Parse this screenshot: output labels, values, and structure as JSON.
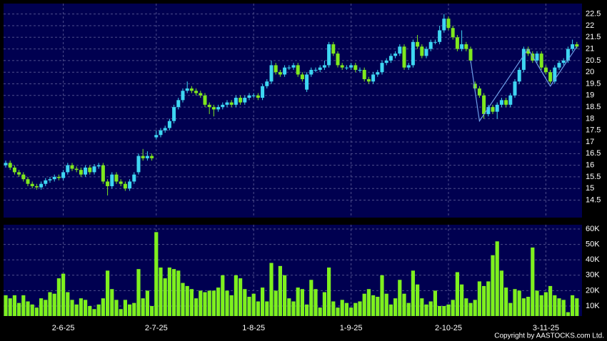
{
  "chart_data": {
    "type": "candlestick",
    "categories": [
      null,
      null,
      null,
      null,
      null,
      null,
      null,
      null,
      null,
      null,
      null,
      null,
      null,
      "2-6-25",
      null,
      null,
      null,
      null,
      null,
      null,
      null,
      null,
      null,
      null,
      null,
      null,
      null,
      null,
      null,
      null,
      null,
      null,
      null,
      null,
      "2-7-25",
      null,
      null,
      null,
      null,
      null,
      null,
      null,
      null,
      null,
      null,
      null,
      null,
      null,
      null,
      null,
      null,
      null,
      null,
      null,
      null,
      null,
      "1-8-25",
      null,
      null,
      null,
      null,
      null,
      null,
      null,
      null,
      null,
      null,
      null,
      null,
      null,
      null,
      null,
      null,
      null,
      null,
      null,
      null,
      null,
      "1-9-25",
      null,
      null,
      null,
      null,
      null,
      null,
      null,
      null,
      null,
      null,
      null,
      null,
      null,
      null,
      null,
      null,
      null,
      null,
      null,
      null,
      null,
      "2-10-25",
      null,
      null,
      null,
      null,
      null,
      null,
      null,
      null,
      null,
      null,
      null,
      null,
      null,
      null,
      null,
      null,
      null,
      null,
      null,
      null,
      null,
      "3-11-25",
      null,
      null,
      null,
      null,
      null,
      null,
      null
    ],
    "open": [
      16.0,
      16.1,
      15.9,
      15.7,
      15.6,
      15.4,
      15.2,
      15.1,
      15.05,
      15.2,
      15.35,
      15.4,
      15.5,
      15.45,
      15.7,
      16.0,
      15.85,
      15.8,
      15.6,
      15.9,
      15.7,
      15.95,
      16.0,
      15.3,
      15.1,
      15.6,
      15.3,
      15.2,
      15.0,
      15.3,
      15.7,
      16.4,
      16.3,
      16.4,
      17.2,
      17.3,
      17.5,
      17.6,
      17.9,
      18.5,
      18.8,
      19.2,
      19.3,
      19.2,
      19.1,
      19.0,
      18.6,
      18.5,
      18.4,
      18.5,
      18.6,
      18.7,
      18.6,
      18.9,
      18.7,
      18.9,
      19.0,
      19.0,
      18.9,
      19.4,
      19.6,
      20.3,
      20.0,
      19.9,
      20.2,
      20.2,
      20.3,
      19.9,
      19.25,
      19.9,
      20.1,
      20.1,
      20.2,
      20.3,
      21.2,
      20.8,
      20.3,
      20.2,
      20.2,
      20.3,
      20.1,
      20.1,
      19.7,
      19.6,
      19.9,
      20.0,
      20.4,
      20.5,
      20.7,
      20.8,
      21.1,
      20.2,
      20.3,
      21.3,
      21.1,
      20.7,
      21.0,
      21.3,
      21.3,
      21.8,
      22.3,
      21.9,
      21.5,
      21.0,
      21.2,
      21.0,
      19.5,
      19.3,
      19.0,
      18.2,
      18.5,
      18.3,
      18.6,
      18.8,
      18.6,
      19.0,
      19.6,
      20.1,
      21.0,
      20.8,
      20.5,
      20.8,
      20.2,
      20.0,
      19.6,
      20.2,
      20.4,
      20.5,
      21.0,
      21.2
    ],
    "high": [
      16.2,
      16.2,
      16.0,
      15.8,
      15.7,
      15.5,
      15.3,
      15.2,
      15.3,
      15.45,
      15.5,
      15.6,
      15.6,
      15.8,
      16.1,
      16.1,
      15.95,
      15.9,
      16.0,
      16.0,
      16.05,
      16.1,
      16.1,
      15.4,
      15.7,
      15.7,
      15.4,
      15.3,
      15.4,
      15.7,
      16.5,
      16.7,
      16.6,
      16.5,
      17.5,
      17.6,
      17.7,
      18.0,
      18.6,
      18.9,
      19.3,
      19.6,
      19.4,
      19.3,
      19.2,
      19.1,
      18.7,
      18.6,
      18.6,
      18.7,
      18.8,
      18.8,
      19.0,
      19.0,
      19.0,
      19.1,
      19.1,
      19.1,
      19.5,
      19.7,
      20.5,
      20.4,
      20.1,
      20.3,
      20.3,
      20.4,
      20.4,
      20.0,
      20.0,
      20.2,
      20.2,
      20.3,
      20.5,
      21.3,
      21.3,
      20.9,
      20.4,
      20.3,
      20.4,
      20.4,
      20.2,
      20.2,
      19.8,
      20.0,
      20.1,
      20.5,
      20.6,
      20.8,
      20.9,
      21.2,
      21.2,
      20.4,
      21.4,
      21.6,
      21.2,
      21.1,
      21.4,
      21.4,
      22.0,
      22.5,
      22.4,
      22.0,
      21.6,
      21.8,
      21.3,
      21.1,
      19.6,
      19.4,
      19.1,
      18.6,
      18.6,
      18.7,
      18.9,
      18.9,
      19.1,
      19.7,
      20.2,
      21.1,
      21.1,
      20.9,
      20.9,
      20.9,
      20.3,
      20.1,
      20.3,
      20.5,
      20.6,
      21.1,
      21.4,
      21.3
    ],
    "low": [
      15.9,
      15.8,
      15.6,
      15.5,
      15.3,
      15.1,
      15.0,
      14.95,
      14.95,
      15.1,
      15.25,
      15.3,
      15.35,
      15.35,
      15.6,
      15.75,
      15.7,
      15.5,
      15.5,
      15.6,
      15.6,
      15.85,
      15.2,
      14.7,
      15.0,
      15.2,
      15.1,
      14.9,
      14.9,
      15.2,
      15.6,
      16.2,
      16.2,
      16.2,
      17.1,
      17.2,
      17.4,
      17.5,
      17.8,
      18.4,
      18.7,
      19.1,
      19.1,
      19.0,
      18.9,
      18.5,
      18.2,
      18.1,
      18.3,
      18.4,
      18.5,
      18.5,
      18.5,
      18.6,
      18.6,
      18.8,
      18.9,
      18.8,
      18.8,
      19.3,
      19.5,
      19.9,
      19.8,
      19.8,
      20.1,
      20.1,
      19.8,
      19.6,
      19.15,
      19.8,
      20.0,
      20.0,
      20.1,
      20.2,
      20.7,
      20.2,
      20.1,
      20.1,
      20.1,
      20.0,
      20.0,
      19.6,
      19.5,
      19.5,
      19.8,
      19.9,
      20.3,
      20.4,
      20.6,
      20.7,
      20.1,
      20.1,
      20.2,
      21.0,
      20.6,
      20.6,
      20.9,
      21.2,
      21.2,
      21.7,
      21.8,
      21.4,
      20.9,
      20.9,
      20.9,
      20.4,
      19.2,
      18.9,
      18.0,
      18.1,
      18.2,
      18.0,
      18.5,
      18.5,
      18.5,
      18.9,
      19.5,
      20.0,
      20.7,
      20.4,
      20.4,
      20.1,
      19.9,
      19.5,
      19.5,
      20.1,
      20.3,
      20.4,
      20.9,
      21.0
    ],
    "close": [
      16.1,
      15.9,
      15.7,
      15.6,
      15.4,
      15.2,
      15.1,
      15.05,
      15.2,
      15.35,
      15.4,
      15.5,
      15.45,
      15.7,
      16.0,
      15.85,
      15.8,
      15.6,
      15.9,
      15.7,
      15.95,
      16.0,
      15.3,
      15.1,
      15.6,
      15.3,
      15.2,
      15.0,
      15.3,
      15.6,
      16.4,
      16.3,
      16.4,
      16.3,
      17.3,
      17.5,
      17.6,
      17.9,
      18.5,
      18.8,
      19.2,
      19.3,
      19.2,
      19.1,
      19.0,
      18.6,
      18.5,
      18.4,
      18.5,
      18.6,
      18.7,
      18.6,
      18.9,
      18.7,
      18.9,
      19.0,
      19.0,
      18.9,
      19.4,
      19.6,
      20.3,
      20.0,
      19.9,
      20.2,
      20.2,
      20.3,
      19.9,
      19.7,
      19.9,
      20.1,
      20.1,
      20.2,
      20.3,
      21.2,
      20.8,
      20.3,
      20.2,
      20.2,
      20.3,
      20.1,
      20.1,
      19.7,
      19.6,
      19.9,
      20.0,
      20.4,
      20.5,
      20.7,
      20.8,
      21.1,
      20.2,
      20.3,
      21.3,
      21.1,
      20.7,
      21.0,
      21.3,
      21.3,
      21.8,
      22.3,
      21.9,
      21.5,
      21.0,
      21.2,
      21.0,
      20.5,
      19.3,
      19.0,
      18.2,
      18.5,
      18.3,
      18.6,
      18.8,
      18.6,
      19.0,
      19.6,
      20.1,
      21.0,
      20.8,
      20.5,
      20.8,
      20.2,
      20.0,
      19.6,
      20.2,
      20.4,
      20.5,
      21.0,
      21.2,
      21.1
    ],
    "volume": [
      17000,
      15000,
      17000,
      12000,
      17000,
      13000,
      11000,
      9000,
      15000,
      14000,
      19000,
      18000,
      28000,
      31000,
      19000,
      14000,
      11000,
      15000,
      14000,
      10000,
      8000,
      11000,
      15000,
      33000,
      21000,
      14000,
      8000,
      14000,
      11000,
      12000,
      34000,
      15000,
      20000,
      10000,
      58000,
      35000,
      28000,
      35000,
      34000,
      33000,
      25000,
      23000,
      21000,
      15000,
      20000,
      19000,
      20000,
      20000,
      22000,
      30000,
      20000,
      17000,
      30000,
      28000,
      21000,
      16000,
      18000,
      13000,
      22000,
      13000,
      38000,
      20000,
      36000,
      30000,
      15000,
      13000,
      22000,
      21000,
      11000,
      27000,
      21000,
      9000,
      19000,
      35000,
      13000,
      9000,
      14000,
      12000,
      9000,
      12000,
      13000,
      18000,
      21000,
      17000,
      16000,
      30000,
      18000,
      11000,
      15000,
      27000,
      18000,
      12000,
      33000,
      24000,
      15000,
      11000,
      13000,
      20000,
      10000,
      10000,
      11000,
      14000,
      32000,
      24000,
      15000,
      12000,
      14000,
      26000,
      23000,
      26000,
      43000,
      52000,
      33000,
      22000,
      12000,
      21000,
      20000,
      15000,
      16000,
      48000,
      20000,
      17000,
      19000,
      23000,
      17000,
      15000,
      14000,
      6000,
      17000,
      15000
    ],
    "up_color": "#3ed6f2",
    "down_color": "#7ee81e",
    "volume_color": "#7ef01e",
    "ylim": [
      13.75,
      22.95
    ],
    "yticks": [
      14.5,
      15,
      15.5,
      16,
      16.5,
      17,
      17.5,
      18,
      18.5,
      19,
      19.5,
      20,
      20.5,
      21,
      21.5,
      22,
      22.5
    ],
    "volume_ylim": [
      3500,
      62800
    ],
    "volume_yticks": [
      {
        "value": 10000,
        "label": "10K"
      },
      {
        "value": 20000,
        "label": "20K"
      },
      {
        "value": 30000,
        "label": "30K"
      },
      {
        "value": 40000,
        "label": "40K"
      },
      {
        "value": 50000,
        "label": "50K"
      },
      {
        "value": 60000,
        "label": "60K"
      }
    ],
    "grid": true,
    "zigzag": {
      "color": "#6d9ee8",
      "x": [
        105,
        107,
        118,
        123,
        129
      ],
      "values": [
        20.5,
        17.9,
        21.0,
        19.4,
        21.1
      ]
    },
    "copyright": "Copyright by AASTOCKS.com Ltd."
  }
}
